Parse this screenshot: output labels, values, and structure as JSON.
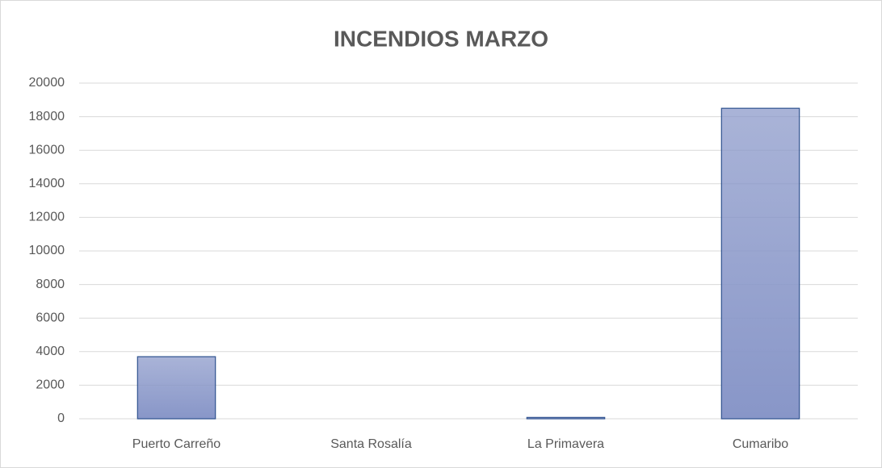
{
  "chart_data": {
    "type": "bar",
    "title": "INCENDIOS MARZO",
    "categories": [
      "Puerto Carreño",
      "Santa Rosalía",
      "La Primavera",
      "Cumaribo"
    ],
    "values": [
      3700,
      0,
      80,
      18500
    ],
    "color": "#8896c8",
    "edge_color": "#2f528f",
    "ylim": [
      0,
      20000
    ],
    "yticks": [
      0,
      2000,
      4000,
      6000,
      8000,
      10000,
      12000,
      14000,
      16000,
      18000,
      20000
    ],
    "grid": true
  }
}
